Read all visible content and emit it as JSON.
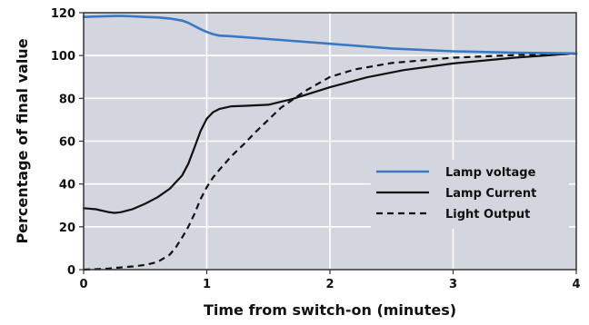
{
  "chart_data": {
    "type": "line",
    "xlabel": "Time from switch-on (minutes)",
    "ylabel": "Percentage of final value",
    "xlim": [
      0,
      4
    ],
    "ylim": [
      0,
      120
    ],
    "x_ticks": [
      "0",
      "1",
      "2",
      "3",
      "4"
    ],
    "y_ticks": [
      "0",
      "20",
      "40",
      "60",
      "80",
      "100",
      "120"
    ],
    "grid": true,
    "legend_position": "bottom-right",
    "colors": {
      "plot_background": "#d3d6de",
      "grid": "#ffffff",
      "frame": "#333333",
      "lamp_voltage": "#3a78c4",
      "lamp_current": "#111111",
      "light_output": "#111111"
    },
    "series": [
      {
        "name": "Lamp voltage",
        "style": "solid",
        "x": [
          0,
          0.1,
          0.2,
          0.3,
          0.4,
          0.5,
          0.6,
          0.7,
          0.8,
          0.85,
          0.9,
          0.95,
          1.0,
          1.05,
          1.1,
          1.2,
          1.5,
          2.0,
          2.5,
          3.0,
          3.5,
          4.0
        ],
        "y": [
          118,
          118.2,
          118.4,
          118.5,
          118.3,
          118,
          117.8,
          117.3,
          116.3,
          115.3,
          113.8,
          112.3,
          111,
          110,
          109.3,
          109,
          107.7,
          105.5,
          103.3,
          102,
          101.3,
          101
        ]
      },
      {
        "name": "Lamp Current",
        "style": "solid",
        "x": [
          0,
          0.1,
          0.2,
          0.25,
          0.3,
          0.4,
          0.5,
          0.6,
          0.7,
          0.8,
          0.85,
          0.9,
          0.95,
          1.0,
          1.05,
          1.1,
          1.2,
          1.3,
          1.5,
          1.7,
          2.0,
          2.3,
          2.6,
          3.0,
          3.5,
          4.0
        ],
        "y": [
          28.7,
          28.2,
          26.9,
          26.5,
          26.8,
          28.3,
          30.8,
          33.8,
          37.8,
          44,
          49.5,
          57,
          64.8,
          70.5,
          73.5,
          75,
          76.3,
          76.5,
          77,
          79.8,
          85.2,
          89.8,
          93.2,
          96.3,
          99,
          101
        ]
      },
      {
        "name": "Light Output",
        "style": "dashed",
        "x": [
          0,
          0.1,
          0.2,
          0.3,
          0.4,
          0.5,
          0.6,
          0.7,
          0.75,
          0.8,
          0.85,
          0.9,
          0.95,
          1.0,
          1.05,
          1.1,
          1.2,
          1.3,
          1.4,
          1.5,
          1.6,
          1.8,
          2.0,
          2.2,
          2.5,
          3.0,
          3.5,
          4.0
        ],
        "y": [
          0,
          0.2,
          0.5,
          1,
          1.5,
          2.2,
          3.5,
          7,
          10.5,
          15,
          20,
          26,
          33,
          38.5,
          43,
          46.5,
          53,
          58.5,
          64.5,
          70,
          75.5,
          83.5,
          90,
          93.5,
          96.5,
          99,
          100.2,
          100.8
        ]
      }
    ]
  }
}
